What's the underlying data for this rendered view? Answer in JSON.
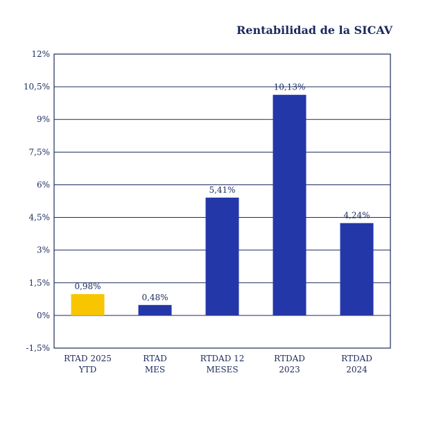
{
  "chart_data": {
    "type": "bar",
    "title": "Rentabilidad de la SICAV",
    "categories": [
      [
        "RTAD 2025",
        "YTD"
      ],
      [
        "RTAD",
        "MES"
      ],
      [
        "RTDAD 12",
        "MESES"
      ],
      [
        "RTDAD",
        "2023"
      ],
      [
        "RTDAD",
        "2024"
      ]
    ],
    "values": [
      0.98,
      0.48,
      5.41,
      10.13,
      4.24
    ],
    "data_labels": [
      "0,98%",
      "0,48%",
      "5,41%",
      "10,13%",
      "4,24%"
    ],
    "bar_colors": [
      "#f7c600",
      "#2437a8",
      "#2437a8",
      "#2437a8",
      "#2437a8"
    ],
    "ylim": [
      -1.5,
      12
    ],
    "yticks": [
      -1.5,
      0,
      1.5,
      3,
      4.5,
      6,
      7.5,
      9,
      10.5,
      12
    ],
    "ytick_labels": [
      "-1,5%",
      "0%",
      "1,5%",
      "3%",
      "4,5%",
      "6%",
      "7,5%",
      "9%",
      "10,5%",
      "12%"
    ],
    "grid": true,
    "frame_color": "#1b2a5c",
    "grid_color": "#1b2a5c"
  }
}
